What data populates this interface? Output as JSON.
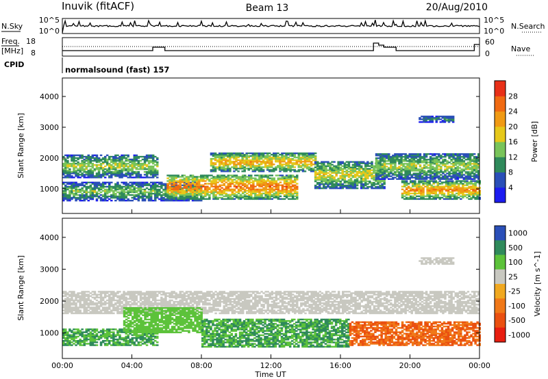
{
  "header": {
    "station": "Inuvik (fitACF)",
    "beam": "Beam 13",
    "date": "20/Aug/2010"
  },
  "sky_panel": {
    "left_label": "N.Sky",
    "left_ticks": [
      "10^5",
      "10^0"
    ],
    "right_ticks": [
      "10^5",
      "10^0"
    ],
    "right_label": "N.Search"
  },
  "freq_panel": {
    "left_label_line1": "Freq.",
    "left_label_line2": "[MHz]",
    "left_ticks": [
      "18",
      "8"
    ],
    "right_ticks": [
      "60",
      "0"
    ],
    "right_label": "Nave"
  },
  "cpid": {
    "label": "CPID",
    "value": "normalsound (fast) 157"
  },
  "chart_data": [
    {
      "type": "heatmap",
      "title": "",
      "ylabel": "Slant Range [km]",
      "ylim": [
        200,
        4600
      ],
      "yticks": [
        "4000",
        "3000",
        "2000",
        "1000"
      ],
      "ytick_values": [
        4000,
        3000,
        2000,
        1000
      ],
      "xlim": [
        "00:00",
        "24:00"
      ],
      "colorbar": {
        "label": "Power [dB]",
        "ticks": [
          "28",
          "24",
          "20",
          "16",
          "12",
          "8",
          "4"
        ],
        "tick_values": [
          28,
          24,
          20,
          16,
          12,
          8,
          4
        ],
        "range": [
          0,
          32
        ],
        "colors": [
          "#1c1cf0",
          "#2a4fb8",
          "#2f8a5b",
          "#79c45a",
          "#e6c81a",
          "#f09a14",
          "#f06a12",
          "#e83018"
        ]
      },
      "bands": [
        {
          "start": 0.0,
          "end": 5.5,
          "range_low": 1350,
          "range_high": 2100,
          "power": 16
        },
        {
          "start": 0.0,
          "end": 8.0,
          "range_low": 600,
          "range_high": 1200,
          "power": 14
        },
        {
          "start": 6.0,
          "end": 13.5,
          "range_low": 650,
          "range_high": 1450,
          "power": 26
        },
        {
          "start": 8.5,
          "end": 14.5,
          "range_low": 1550,
          "range_high": 2150,
          "power": 22
        },
        {
          "start": 14.5,
          "end": 18.5,
          "range_low": 1000,
          "range_high": 1900,
          "power": 18
        },
        {
          "start": 18.0,
          "end": 24.0,
          "range_low": 1300,
          "range_high": 2150,
          "power": 16
        },
        {
          "start": 19.5,
          "end": 24.0,
          "range_low": 650,
          "range_high": 1250,
          "power": 24
        },
        {
          "start": 20.5,
          "end": 22.5,
          "range_low": 3150,
          "range_high": 3350,
          "power": 10
        }
      ]
    },
    {
      "type": "heatmap",
      "title": "",
      "ylabel": "Slant Range [km]",
      "xlabel": "Time UT",
      "ylim": [
        200,
        4600
      ],
      "yticks": [
        "4000",
        "3000",
        "2000",
        "1000"
      ],
      "ytick_values": [
        4000,
        3000,
        2000,
        1000
      ],
      "xlim": [
        "00:00",
        "24:00"
      ],
      "xticks": [
        "00:00",
        "04:00",
        "08:00",
        "12:00",
        "16:00",
        "20:00",
        "00:00"
      ],
      "colorbar": {
        "label": "Velocity [m s^-1]",
        "ticks": [
          "1000",
          "500",
          "100",
          "25",
          "-25",
          "-100",
          "-500",
          "-1000"
        ],
        "tick_values": [
          1000,
          500,
          100,
          25,
          -25,
          -100,
          -500,
          -1000
        ],
        "colors": [
          "#2a4fb8",
          "#2f8a5b",
          "#5cc23a",
          "#c8c8c0",
          "#f0a820",
          "#f07818",
          "#ea5010",
          "#e81e10"
        ]
      },
      "bands": [
        {
          "start": 0.0,
          "end": 24.0,
          "range_low": 1600,
          "range_high": 2300,
          "velocity": 0
        },
        {
          "start": 0.0,
          "end": 5.5,
          "range_low": 600,
          "range_high": 1100,
          "velocity": 300
        },
        {
          "start": 3.5,
          "end": 8.0,
          "range_low": 1000,
          "range_high": 1800,
          "velocity": 150
        },
        {
          "start": 8.0,
          "end": 16.5,
          "range_low": 550,
          "range_high": 1450,
          "velocity": 300
        },
        {
          "start": 16.5,
          "end": 24.0,
          "range_low": 600,
          "range_high": 1350,
          "velocity": -300
        },
        {
          "start": 20.5,
          "end": 22.5,
          "range_low": 3150,
          "range_high": 3350,
          "velocity": 0
        }
      ]
    }
  ]
}
